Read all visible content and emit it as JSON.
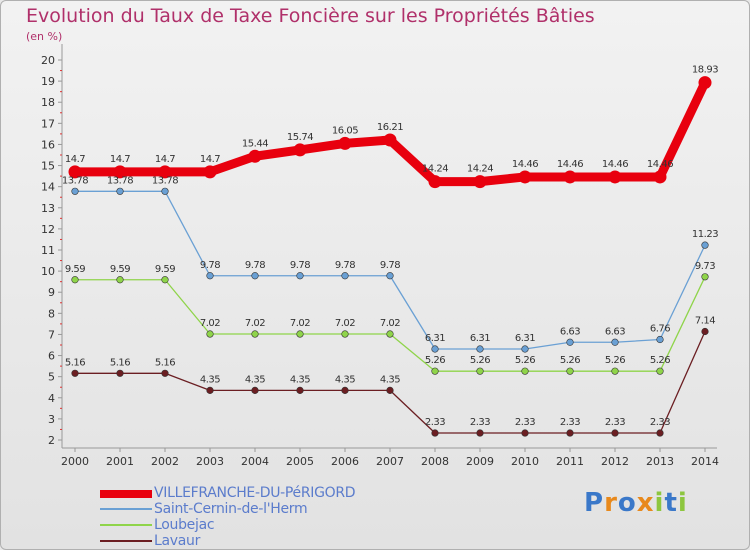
{
  "title": "Evolution du Taux de Taxe Foncière sur les Propriétés Bâties",
  "unit": "(en %)",
  "logo": "Proxiti",
  "colors": {
    "title": "#b0306a",
    "legend_text": "#5b7ccc"
  },
  "chart_data": {
    "type": "line",
    "title": "Evolution du Taux de Taxe Foncière sur les Propriétés Bâties",
    "ylabel": "(en %)",
    "xlabel": "",
    "ylim": [
      2,
      20
    ],
    "yticks": [
      2,
      3,
      4,
      5,
      6,
      7,
      8,
      9,
      10,
      11,
      12,
      13,
      14,
      15,
      16,
      17,
      18,
      19,
      20
    ],
    "categories": [
      "2000",
      "2001",
      "2002",
      "2003",
      "2004",
      "2005",
      "2006",
      "2007",
      "2008",
      "2009",
      "2010",
      "2011",
      "2012",
      "2013",
      "2014"
    ],
    "series": [
      {
        "name": "VILLEFRANCHE-DU-PéRIGORD",
        "color": "#e8000e",
        "values": [
          14.7,
          14.7,
          14.7,
          14.7,
          15.44,
          15.74,
          16.05,
          16.21,
          14.24,
          14.24,
          14.46,
          14.46,
          14.46,
          14.46,
          18.93
        ],
        "labels": [
          "14.7",
          "14.7",
          "14.7",
          "14.7",
          "15.44",
          "15.74",
          "16.05",
          "16.21",
          "14.24",
          "14.24",
          "14.46",
          "14.46",
          "14.46",
          "14.46",
          "18.93"
        ]
      },
      {
        "name": "Saint-Cernin-de-l'Herm",
        "color": "#6aa0d4",
        "values": [
          13.78,
          13.78,
          13.78,
          9.78,
          9.78,
          9.78,
          9.78,
          9.78,
          6.31,
          6.31,
          6.31,
          6.63,
          6.63,
          6.76,
          11.23
        ],
        "labels": [
          "13.78",
          "13.78",
          "13.78",
          "9.78",
          "9.78",
          "9.78",
          "9.78",
          "9.78",
          "6.31",
          "6.31",
          "6.31",
          "6.63",
          "6.63",
          "6.76",
          "11.23"
        ]
      },
      {
        "name": "Loubejac",
        "color": "#8fd44a",
        "values": [
          9.59,
          9.59,
          9.59,
          7.02,
          7.02,
          7.02,
          7.02,
          7.02,
          5.26,
          5.26,
          5.26,
          5.26,
          5.26,
          5.26,
          9.73
        ],
        "labels": [
          "9.59",
          "9.59",
          "9.59",
          "7.02",
          "7.02",
          "7.02",
          "7.02",
          "7.02",
          "5.26",
          "5.26",
          "5.26",
          "5.26",
          "5.26",
          "5.26",
          "9.73"
        ]
      },
      {
        "name": "Lavaur",
        "color": "#6b1e22",
        "values": [
          5.16,
          5.16,
          5.16,
          4.35,
          4.35,
          4.35,
          4.35,
          4.35,
          2.33,
          2.33,
          2.33,
          2.33,
          2.33,
          2.33,
          7.14
        ],
        "labels": [
          "5.16",
          "5.16",
          "5.16",
          "4.35",
          "4.35",
          "4.35",
          "4.35",
          "4.35",
          "2.33",
          "2.33",
          "2.33",
          "2.33",
          "2.33",
          "2.33",
          "7.14"
        ]
      }
    ],
    "legend": "bottom-left",
    "grid": false
  }
}
